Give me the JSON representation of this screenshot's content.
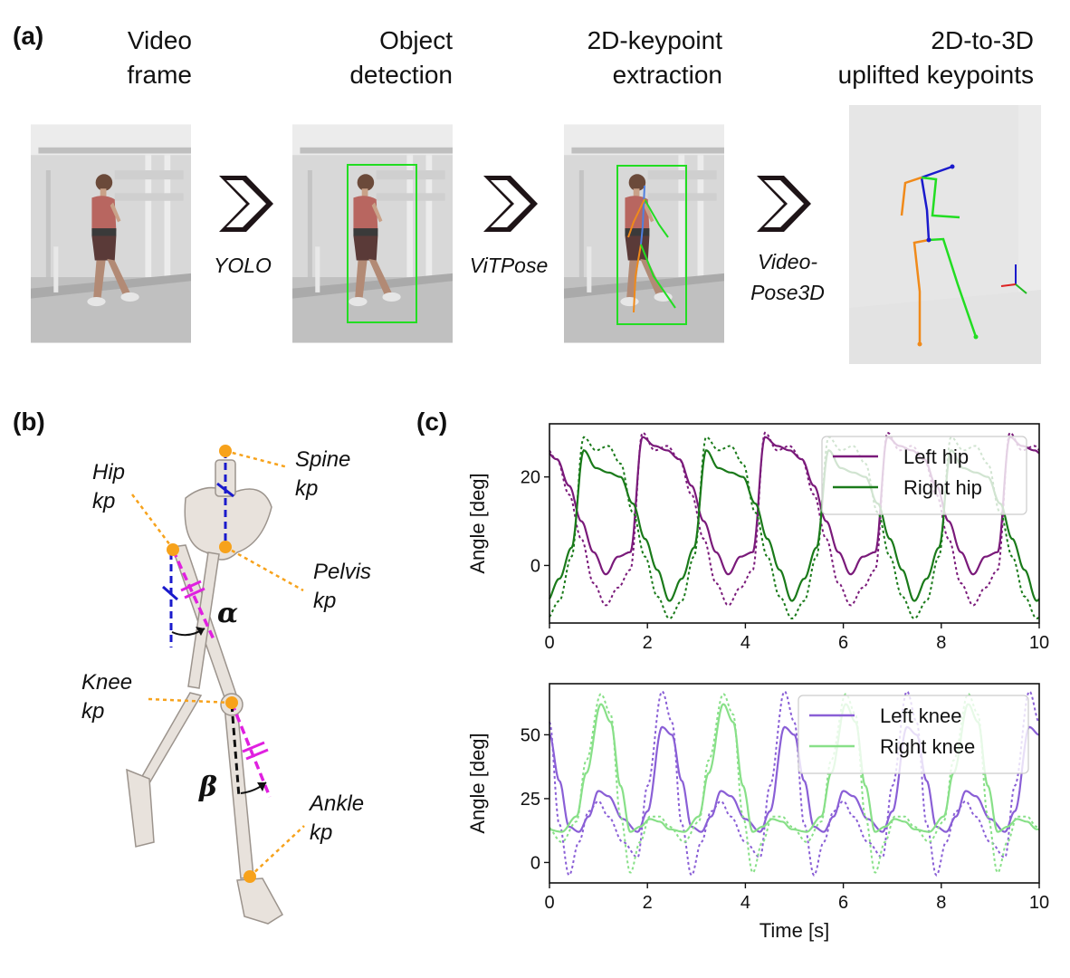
{
  "panel_a": {
    "label": "(a)",
    "steps": [
      {
        "title_line1": "Video",
        "title_line2": "frame"
      },
      {
        "title_line1": "Object",
        "title_line2": "detection"
      },
      {
        "title_line1": "2D-keypoint",
        "title_line2": "extraction"
      },
      {
        "title_line1": "2D-to-3D",
        "title_line2": "uplifted keypoints"
      }
    ],
    "methods": [
      {
        "line1": "YOLO",
        "line2": ""
      },
      {
        "line1": "ViTPose",
        "line2": ""
      },
      {
        "line1": "Video-",
        "line2": "Pose3D"
      }
    ]
  },
  "panel_b": {
    "label": "(b)",
    "keypoints": {
      "spine": {
        "line1": "Spine",
        "line2": "kp"
      },
      "hip": {
        "line1": "Hip",
        "line2": "kp"
      },
      "pelvis": {
        "line1": "Pelvis",
        "line2": "kp"
      },
      "knee": {
        "line1": "Knee",
        "line2": "kp"
      },
      "ankle": {
        "line1": "Ankle",
        "line2": "kp"
      }
    },
    "alpha": "α",
    "beta": "β",
    "colors": {
      "keypoint": "#f7a21b",
      "vertical": "#1a1acc",
      "segment": "#e020e0",
      "knee_ref": "#111111"
    }
  },
  "panel_c": {
    "label": "(c)"
  },
  "chart_data": [
    {
      "type": "line",
      "xlim": [
        0,
        10
      ],
      "ylim": [
        -13,
        32
      ],
      "xticks": [
        0,
        2,
        4,
        6,
        8,
        10
      ],
      "yticks": [
        0,
        20
      ],
      "xlabel": "",
      "ylabel": "Angle [deg]",
      "legend_position": "top-right",
      "period": 2.5,
      "series": [
        {
          "name": "Left hip",
          "style": "solid",
          "color": "#7a1a7a",
          "phase": 0.6,
          "x": [
            0,
            0.25,
            0.5,
            0.75,
            1.0,
            1.25,
            1.5,
            1.75,
            2.0,
            2.25,
            2.5
          ],
          "y": [
            29,
            27,
            26,
            24,
            18,
            10,
            3,
            -2,
            2,
            3,
            29
          ]
        },
        {
          "name": "",
          "style": "dotted",
          "color": "#7a1a7a",
          "phase": 0.6,
          "x": [
            0,
            0.25,
            0.5,
            0.75,
            1.0,
            1.25,
            1.5,
            1.75,
            2.0,
            2.25,
            2.5
          ],
          "y": [
            30,
            26,
            27,
            24,
            16,
            6,
            -4,
            -9,
            -5,
            -1,
            30
          ]
        },
        {
          "name": "Right hip",
          "style": "solid",
          "color": "#1a7a1a",
          "phase": 1.8,
          "x": [
            0,
            0.25,
            0.5,
            0.75,
            1.0,
            1.25,
            1.5,
            1.75,
            2.0,
            2.25,
            2.5
          ],
          "y": [
            26,
            22,
            21,
            20,
            14,
            6,
            -1,
            -8,
            -3,
            4,
            26
          ]
        },
        {
          "name": "",
          "style": "dotted",
          "color": "#1a7a1a",
          "phase": 1.8,
          "x": [
            0,
            0.25,
            0.5,
            0.75,
            1.0,
            1.25,
            1.5,
            1.75,
            2.0,
            2.25,
            2.5
          ],
          "y": [
            29,
            26,
            27,
            23,
            12,
            2,
            -7,
            -12,
            -8,
            2,
            29
          ]
        }
      ]
    },
    {
      "type": "line",
      "xlim": [
        0,
        10
      ],
      "ylim": [
        -8,
        70
      ],
      "xticks": [
        0,
        2,
        4,
        6,
        8,
        10
      ],
      "yticks": [
        0,
        25,
        50
      ],
      "xlabel": "Time [s]",
      "ylabel": "Angle [deg]",
      "legend_position": "top-right",
      "period": 2.5,
      "series": [
        {
          "name": "Left knee",
          "style": "solid",
          "color": "#8a5fd6",
          "phase": 0.2,
          "x": [
            0,
            0.2,
            0.4,
            0.6,
            0.8,
            1.0,
            1.2,
            1.4,
            1.7,
            2.0,
            2.2,
            2.5
          ],
          "y": [
            53,
            50,
            32,
            14,
            12,
            18,
            28,
            26,
            17,
            12,
            20,
            53
          ]
        },
        {
          "name": "",
          "style": "dotted",
          "color": "#8a5fd6",
          "phase": 0.2,
          "x": [
            0,
            0.2,
            0.4,
            0.6,
            0.8,
            1.0,
            1.2,
            1.4,
            1.7,
            2.0,
            2.2,
            2.5
          ],
          "y": [
            67,
            55,
            15,
            -5,
            8,
            20,
            24,
            18,
            8,
            2,
            30,
            67
          ]
        },
        {
          "name": "Right knee",
          "style": "solid",
          "color": "#88e088",
          "phase": 1.45,
          "x": [
            0,
            0.2,
            0.4,
            0.6,
            0.8,
            1.0,
            1.2,
            1.4,
            1.7,
            2.0,
            2.2,
            2.5
          ],
          "y": [
            62,
            55,
            30,
            12,
            14,
            17,
            16,
            13,
            12,
            18,
            35,
            62
          ]
        },
        {
          "name": "",
          "style": "dotted",
          "color": "#88e088",
          "phase": 1.45,
          "x": [
            0,
            0.2,
            0.4,
            0.6,
            0.8,
            1.0,
            1.2,
            1.4,
            1.7,
            2.0,
            2.2,
            2.5
          ],
          "y": [
            66,
            58,
            18,
            -4,
            8,
            18,
            18,
            14,
            8,
            16,
            40,
            66
          ]
        }
      ]
    }
  ]
}
